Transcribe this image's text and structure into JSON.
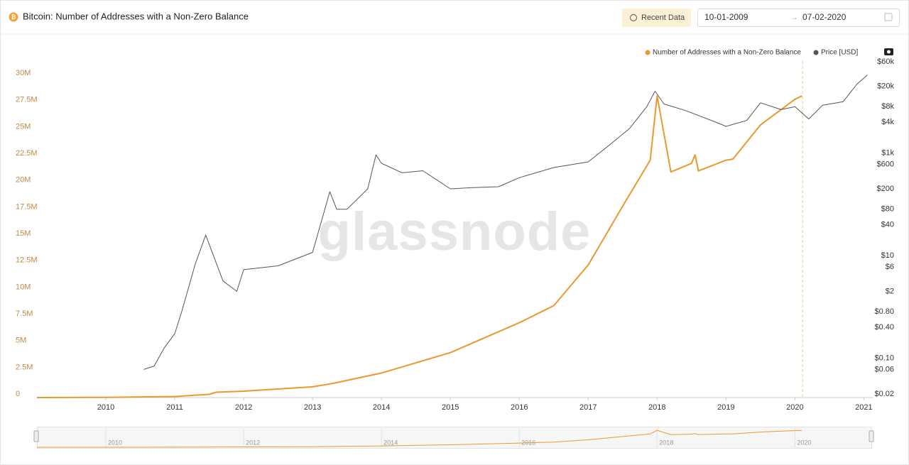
{
  "header": {
    "recent_button": "Recent Data",
    "date_from": "10-01-2009",
    "date_to": "07-02-2020"
  },
  "chart_data": {
    "type": "line",
    "title": "Bitcoin: Number of Addresses with a Non-Zero Balance",
    "watermark": "glassnode",
    "xlim": [
      2009.0,
      2021.14
    ],
    "xticks": [
      2010,
      2011,
      2012,
      2013,
      2014,
      2015,
      2016,
      2017,
      2018,
      2019,
      2020,
      2021
    ],
    "ylim": [
      0,
      32000000
    ],
    "yticks": [
      0,
      {
        "value": 2500000,
        "label": "2.5M"
      },
      {
        "value": 5000000,
        "label": "5M"
      },
      {
        "value": 7500000,
        "label": "7.5M"
      },
      {
        "value": 10000000,
        "label": "10M"
      },
      {
        "value": 12500000,
        "label": "12.5M"
      },
      {
        "value": 15000000,
        "label": "15M"
      },
      {
        "value": 17500000,
        "label": "17.5M"
      },
      {
        "value": 20000000,
        "label": "20M"
      },
      {
        "value": 22500000,
        "label": "22.5M"
      },
      {
        "value": 25000000,
        "label": "25M"
      },
      {
        "value": 27500000,
        "label": "27.5M"
      },
      {
        "value": 30000000,
        "label": "30M"
      }
    ],
    "y2lim": [
      0.017,
      80000
    ],
    "y2_log": true,
    "y2ticks": [
      {
        "value": 0.02,
        "label": "$0.02"
      },
      {
        "value": 0.06,
        "label": "$0.06"
      },
      {
        "value": 0.1,
        "label": "$0.10"
      },
      {
        "value": 0.4,
        "label": "$0.40"
      },
      {
        "value": 0.8,
        "label": "$0.80"
      },
      {
        "value": 2,
        "label": "$2"
      },
      {
        "value": 6,
        "label": "$6"
      },
      {
        "value": 10,
        "label": "$10"
      },
      {
        "value": 40,
        "label": "$40"
      },
      {
        "value": 80,
        "label": "$80"
      },
      {
        "value": 200,
        "label": "$200"
      },
      {
        "value": 600,
        "label": "$600"
      },
      {
        "value": 1000,
        "label": "$1k"
      },
      {
        "value": 4000,
        "label": "$4k"
      },
      {
        "value": 8000,
        "label": "$8k"
      },
      {
        "value": 20000,
        "label": "$20k"
      },
      {
        "value": 60000,
        "label": "$60k"
      }
    ],
    "grid": false,
    "legend_position": "top-right",
    "series": [
      {
        "name": "Number of Addresses with a Non-Zero Balance",
        "color": "#e8992f",
        "x": [
          2009.0,
          2010.0,
          2011.0,
          2011.5,
          2011.6,
          2012.0,
          2013.0,
          2013.3,
          2014.0,
          2015.0,
          2016.0,
          2016.5,
          2017.0,
          2017.5,
          2017.9,
          2018.0,
          2018.2,
          2018.5,
          2018.55,
          2018.6,
          2019.0,
          2019.1,
          2019.5,
          2020.0,
          2020.1
        ],
        "values": [
          0,
          20000,
          100000,
          300000,
          500000,
          600000,
          1000000,
          1330000,
          2300000,
          4200000,
          7000000,
          8600000,
          12400000,
          17900000,
          22200000,
          28200000,
          21100000,
          21900000,
          22700000,
          21200000,
          22200000,
          22300000,
          25500000,
          27900000,
          28200000
        ]
      },
      {
        "name": "Price [USD]",
        "color": "#555555",
        "axis": "y2",
        "x": [
          2010.55,
          2010.7,
          2010.85,
          2011.0,
          2011.1,
          2011.3,
          2011.45,
          2011.7,
          2011.9,
          2012.0,
          2012.5,
          2013.0,
          2013.25,
          2013.35,
          2013.5,
          2013.8,
          2013.92,
          2014.0,
          2014.3,
          2014.6,
          2015.0,
          2015.3,
          2015.7,
          2016.0,
          2016.5,
          2017.0,
          2017.3,
          2017.6,
          2017.85,
          2017.97,
          2018.1,
          2018.4,
          2018.85,
          2019.0,
          2019.3,
          2019.5,
          2019.8,
          2020.0,
          2020.2,
          2020.4,
          2020.7,
          2020.9,
          2021.05
        ],
        "values": [
          0.06,
          0.07,
          0.16,
          0.3,
          0.8,
          7,
          25,
          3.2,
          2,
          5.3,
          6.3,
          11.5,
          175,
          80,
          80,
          200,
          916,
          630,
          410,
          450,
          200,
          210,
          220,
          330,
          520,
          670,
          1400,
          3000,
          8000,
          16000,
          9000,
          6800,
          4000,
          3300,
          4300,
          9500,
          7000,
          8000,
          4600,
          8500,
          10000,
          22000,
          33000
        ]
      }
    ],
    "navigator_xticks": [
      2010,
      2012,
      2014,
      2016,
      2018,
      2020
    ]
  }
}
